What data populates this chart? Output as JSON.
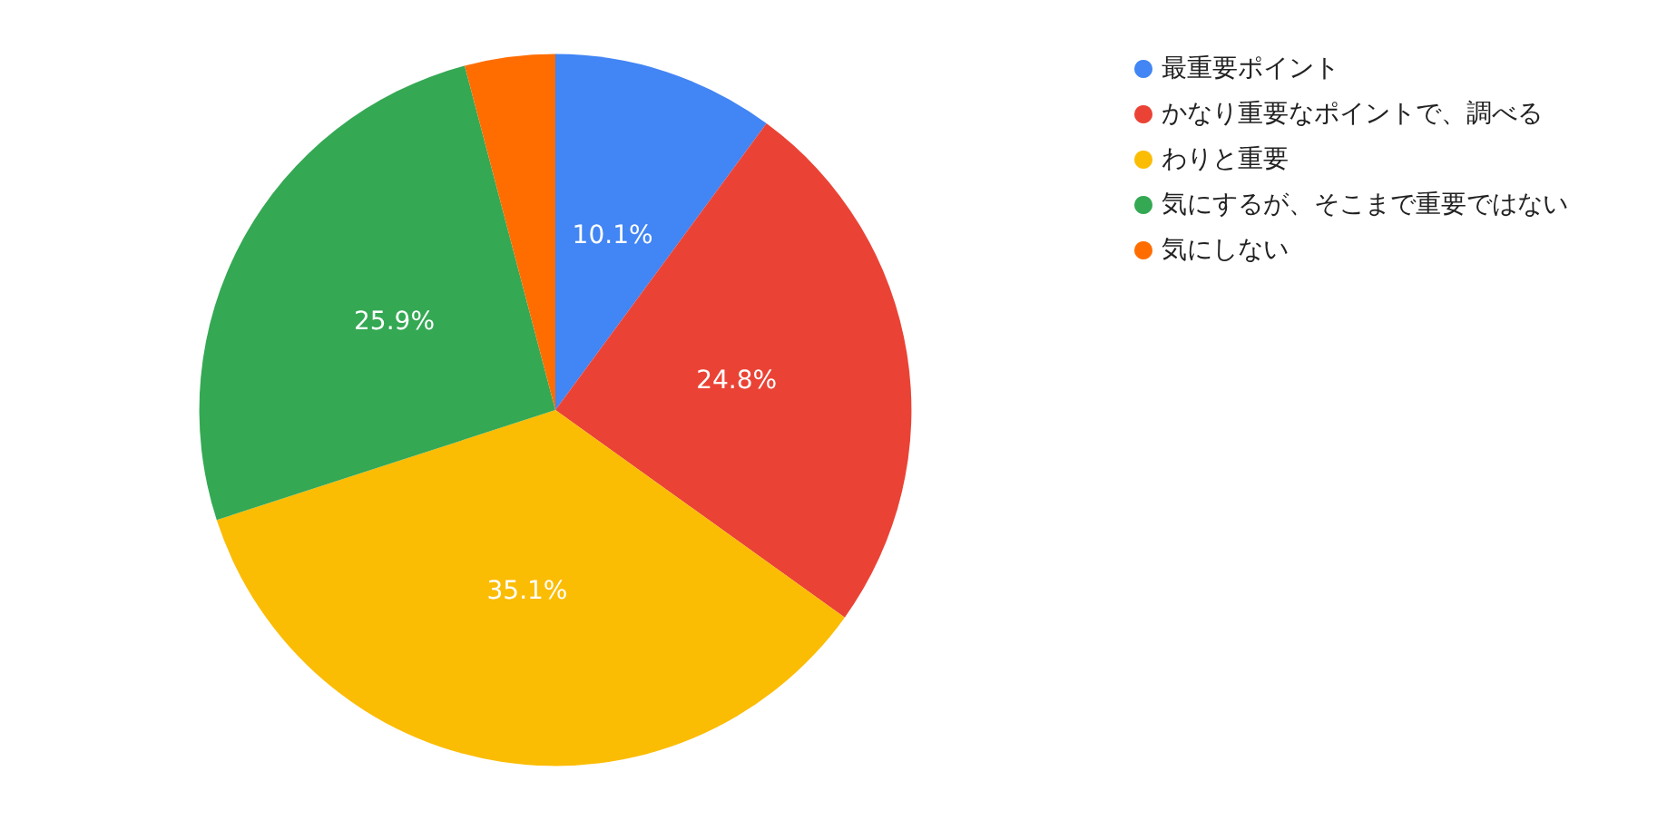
{
  "chart_data": {
    "type": "pie",
    "categories": [
      "最重要ポイント",
      "かなり重要なポイントで、調べる",
      "わりと重要",
      "気にするが、そこまで重要ではない",
      "気にしない"
    ],
    "values": [
      10.1,
      24.8,
      35.1,
      25.9,
      4.1
    ],
    "value_labels": [
      "10.1%",
      "24.8%",
      "35.1%",
      "25.9%",
      null
    ],
    "colors": [
      "#4285f4",
      "#ea4335",
      "#fbbc04",
      "#34a853",
      "#ff6d01"
    ],
    "legend": "top right"
  }
}
